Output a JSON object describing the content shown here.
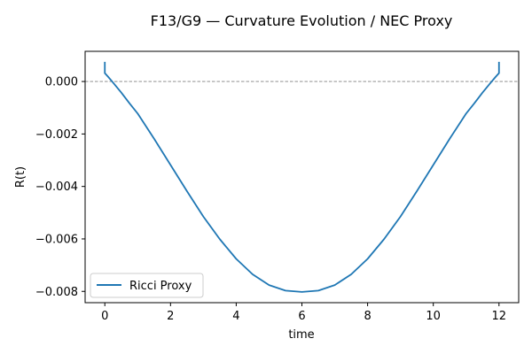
{
  "chart_data": {
    "type": "line",
    "title": "F13/G9 — Curvature Evolution / NEC Proxy",
    "xlabel": "time",
    "ylabel": "R(t)",
    "xlim": [
      -0.6,
      12.6
    ],
    "ylim": [
      -0.00843,
      0.00115
    ],
    "x_ticks": [
      0,
      2,
      4,
      6,
      8,
      10,
      12
    ],
    "x_tick_labels": [
      "0",
      "2",
      "4",
      "6",
      "8",
      "10",
      "12"
    ],
    "y_ticks": [
      0.0,
      -0.002,
      -0.004,
      -0.006,
      -0.008
    ],
    "y_tick_labels": [
      "0.000",
      "−0.002",
      "−0.004",
      "−0.006",
      "−0.008"
    ],
    "grid": false,
    "legend_position": "lower-left",
    "reference_line": {
      "y": 0.0,
      "style": "dashed",
      "color": "#808080"
    },
    "series": [
      {
        "name": "Ricci Proxy",
        "color": "#1f77b4",
        "x": [
          0,
          0,
          0.1,
          0.25,
          0.5,
          0.75,
          1,
          1.5,
          2,
          2.5,
          3,
          3.5,
          4,
          4.5,
          5,
          5.5,
          6,
          6.5,
          7,
          7.5,
          8,
          8.5,
          9,
          9.5,
          10,
          10.5,
          11,
          11.25,
          11.5,
          11.75,
          11.9,
          12,
          12
        ],
        "y": [
          0.00075,
          0.00032,
          0.00018,
          -4e-05,
          -0.00042,
          -0.00083,
          -0.00122,
          -0.00218,
          -0.00318,
          -0.00418,
          -0.00515,
          -0.00601,
          -0.00676,
          -0.00735,
          -0.00776,
          -0.00797,
          -0.00802,
          -0.00797,
          -0.00776,
          -0.00735,
          -0.00676,
          -0.00601,
          -0.00515,
          -0.00418,
          -0.00318,
          -0.00218,
          -0.00122,
          -0.00083,
          -0.00042,
          -4e-05,
          0.00018,
          0.00032,
          0.00075
        ]
      }
    ]
  }
}
